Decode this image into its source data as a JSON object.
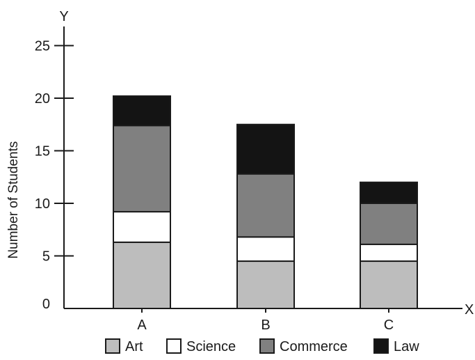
{
  "chart_data": {
    "type": "bar",
    "stacked": true,
    "categories": [
      "A",
      "B",
      "C"
    ],
    "series": [
      {
        "name": "Art",
        "values": [
          6.3,
          4.5,
          4.5
        ],
        "color": "#bdbdbd"
      },
      {
        "name": "Science",
        "values": [
          2.9,
          2.3,
          1.6
        ],
        "color": "#ffffff"
      },
      {
        "name": "Commerce",
        "values": [
          8.2,
          6.0,
          3.9
        ],
        "color": "#808080"
      },
      {
        "name": "Law",
        "values": [
          2.8,
          4.7,
          2.0
        ],
        "color": "#141414"
      }
    ],
    "xlabel": "X",
    "ylabel": "Number of Students",
    "y_axis_letter": "Y",
    "ylim": [
      0,
      29
    ],
    "yticks": [
      0,
      5,
      10,
      15,
      20,
      25
    ],
    "ytick_labels": [
      "0",
      "5",
      "10",
      "15",
      "20",
      "25"
    ],
    "grid": false,
    "legend_position": "bottom"
  }
}
